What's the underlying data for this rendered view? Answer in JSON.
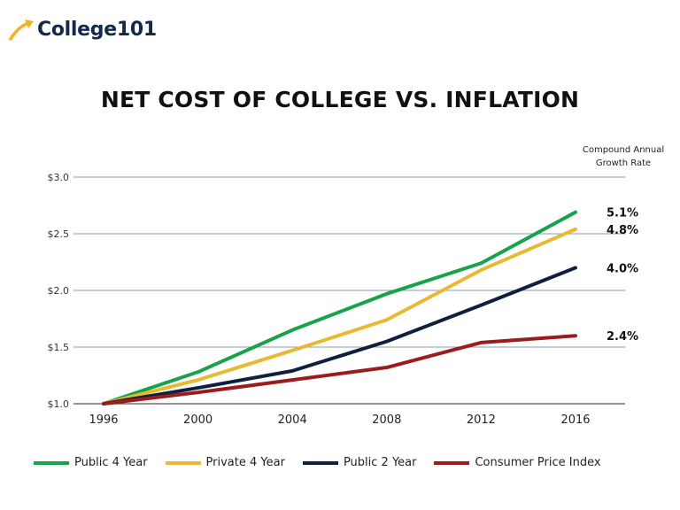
{
  "brand": {
    "name": "College101",
    "accent": "#f2b31c",
    "color": "#13294b"
  },
  "chart_data": {
    "type": "line",
    "title": "NET COST OF COLLEGE VS. INFLATION",
    "x": [
      "1996",
      "2000",
      "2004",
      "2008",
      "2012",
      "2016"
    ],
    "y_ticks": [
      "$1.0",
      "$1.5",
      "$2.0",
      "$2.5",
      "$3.0"
    ],
    "ylim": [
      1.0,
      3.0
    ],
    "annotation_header": [
      "Compound Annual",
      "Growth Rate"
    ],
    "series": [
      {
        "name": "Public 4 Year",
        "color": "#16a34a",
        "values": [
          1.0,
          1.28,
          1.65,
          1.97,
          2.24,
          2.69
        ],
        "rate": "5.1%"
      },
      {
        "name": "Private 4 Year",
        "color": "#e8b931",
        "values": [
          1.0,
          1.21,
          1.47,
          1.74,
          2.18,
          2.54
        ],
        "rate": "4.8%"
      },
      {
        "name": "Public 2 Year",
        "color": "#0f1f3d",
        "values": [
          1.0,
          1.14,
          1.29,
          1.55,
          1.87,
          2.2
        ],
        "rate": "4.0%"
      },
      {
        "name": "Consumer Price Index",
        "color": "#9b1c1c",
        "values": [
          1.0,
          1.1,
          1.21,
          1.32,
          1.54,
          1.6
        ],
        "rate": "2.4%"
      }
    ]
  }
}
